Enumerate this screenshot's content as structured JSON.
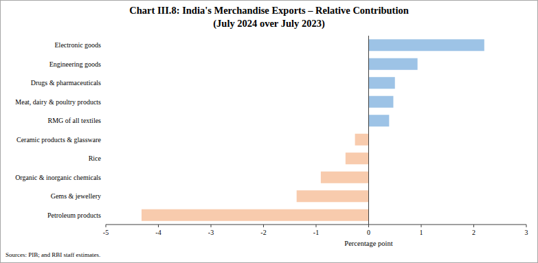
{
  "chart_data": {
    "type": "bar",
    "orientation": "horizontal",
    "title": "Chart III.8: India's Merchandise Exports – Relative Contribution",
    "subtitle": "(July 2024 over July 2023)",
    "categories": [
      "Electronic goods",
      "Engineering goods",
      "Drugs & pharmaceuticals",
      "Meat, dairy & poultry products",
      "RMG of all textiles",
      "Ceramic products & glassware",
      "Rice",
      "Organic & inorganic chemicals",
      "Gems & jewellery",
      "Petroleum products"
    ],
    "values": [
      2.2,
      0.93,
      0.5,
      0.47,
      0.39,
      -0.26,
      -0.44,
      -0.91,
      -1.37,
      -4.32
    ],
    "colors": [
      "#9dc3e6",
      "#9dc3e6",
      "#9dc3e6",
      "#9dc3e6",
      "#9dc3e6",
      "#f8cbad",
      "#f8cbad",
      "#f8cbad",
      "#f8cbad",
      "#f8cbad"
    ],
    "xlim": [
      -5,
      3
    ],
    "xticks": [
      -5,
      -4,
      -3,
      -2,
      -1,
      0,
      1,
      2,
      3
    ],
    "xlabel": "Percentage point",
    "source": "Sources: PIB; and RBI staff estimates.",
    "grid": false
  }
}
